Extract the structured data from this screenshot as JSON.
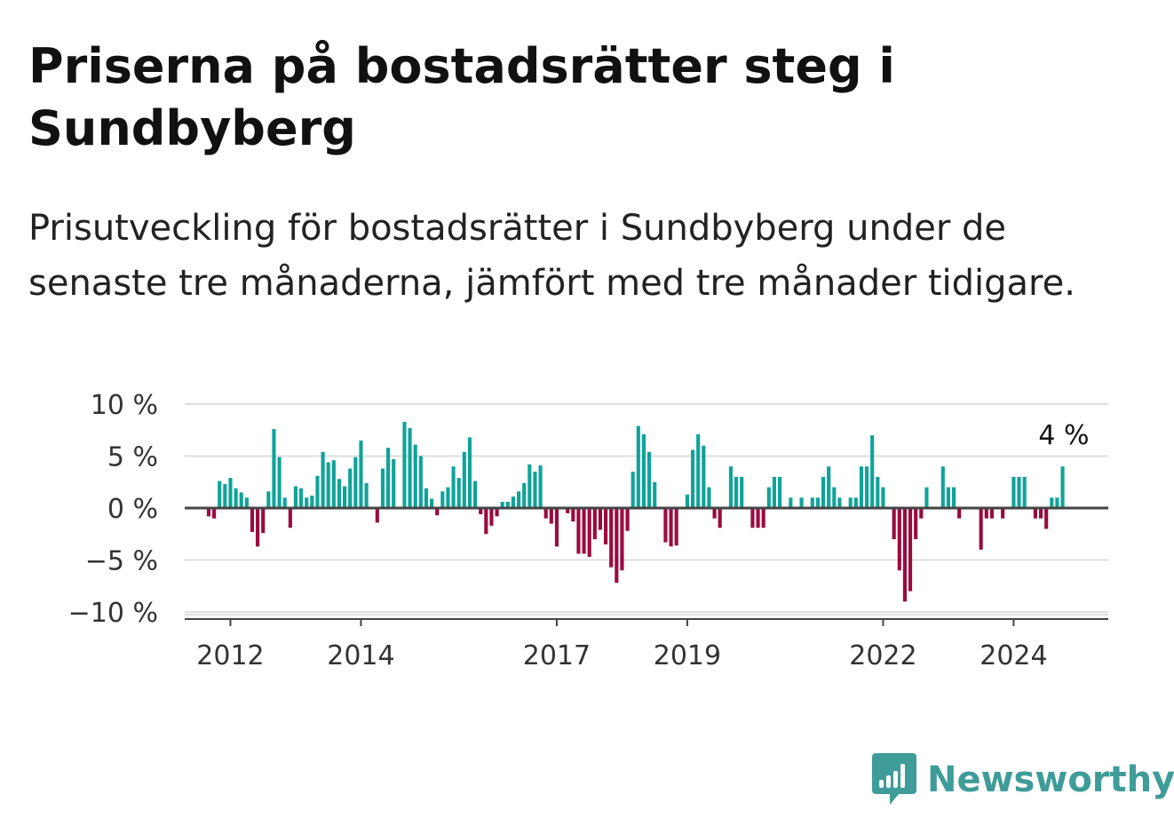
{
  "title": "Priserna på bostadsrätter steg i Sundbyberg",
  "subtitle": "Prisutveckling för bostadsrätter i Sundbyberg under de senaste tre månaderna, jämfört med tre månader tidigare.",
  "brand": {
    "name": "Newsworthy",
    "icon": "newsworthy-logo-icon",
    "color": "#3f9c98"
  },
  "colors": {
    "positive": "#0fa39a",
    "negative": "#9b0a3e",
    "grid": "#dddddd",
    "zero": "#444444"
  },
  "chart_data": {
    "type": "bar",
    "title": "",
    "xlabel": "",
    "ylabel": "",
    "ylim": [
      -10,
      10
    ],
    "y_ticks": [
      10,
      5,
      0,
      -5,
      -10
    ],
    "y_tick_labels": [
      "10 %",
      "5 %",
      "0 %",
      "−5 %",
      "−10 %"
    ],
    "x_ticks": [
      2012,
      2014,
      2017,
      2019,
      2022,
      2024
    ],
    "x_tick_labels": [
      "2012",
      "2014",
      "2017",
      "2019",
      "2022",
      "2024"
    ],
    "x_start": 2011.667,
    "x_step": 0.08333,
    "values": [
      -0.8,
      -1.0,
      2.6,
      2.3,
      2.9,
      1.9,
      1.5,
      1.0,
      -2.3,
      -3.7,
      -2.4,
      1.6,
      7.6,
      4.9,
      1.0,
      -1.9,
      2.1,
      1.9,
      1.0,
      1.2,
      3.1,
      5.4,
      4.4,
      4.6,
      2.8,
      2.1,
      3.8,
      4.9,
      6.5,
      2.4,
      0.0,
      -1.4,
      3.8,
      5.8,
      4.7,
      0.0,
      8.3,
      7.7,
      6.1,
      5.0,
      1.9,
      0.9,
      -0.7,
      1.6,
      2.0,
      4.0,
      2.9,
      5.4,
      6.8,
      2.6,
      -0.6,
      -2.5,
      -1.7,
      -0.8,
      0.6,
      0.6,
      1.1,
      1.6,
      2.4,
      4.2,
      3.5,
      4.1,
      -1.0,
      -1.5,
      -3.7,
      0.0,
      -0.5,
      -1.3,
      -4.4,
      -4.4,
      -4.7,
      -3.0,
      -2.1,
      -3.5,
      -5.7,
      -7.2,
      -6.0,
      -2.2,
      3.5,
      7.9,
      7.1,
      5.4,
      2.5,
      0.0,
      -3.3,
      -3.7,
      -3.6,
      0.0,
      1.3,
      5.6,
      7.1,
      6.0,
      2.0,
      -1.0,
      -1.9,
      0.0,
      4.0,
      3.0,
      3.0,
      0.0,
      -1.9,
      -1.9,
      -1.9,
      2.0,
      3.0,
      3.0,
      0.0,
      1.0,
      0.0,
      1.0,
      0.0,
      1.0,
      1.0,
      3.0,
      4.0,
      2.0,
      1.0,
      0.0,
      1.0,
      1.0,
      4.0,
      4.0,
      7.0,
      3.0,
      2.0,
      0.0,
      -3.0,
      -6.0,
      -9.0,
      -8.0,
      -3.0,
      -1.0,
      2.0,
      0.0,
      0.0,
      4.0,
      2.0,
      2.0,
      -1.0,
      0.0,
      0.0,
      0.0,
      -4.0,
      -1.0,
      -1.0,
      0.0,
      -1.0,
      0.0,
      3.0,
      3.0,
      3.0,
      0.0,
      -1.0,
      -1.0,
      -2.0,
      1.0,
      1.0,
      4.0
    ],
    "annotations": [
      {
        "text": "4 %",
        "target": "last-bar"
      }
    ],
    "grid": true,
    "legend": "none"
  }
}
